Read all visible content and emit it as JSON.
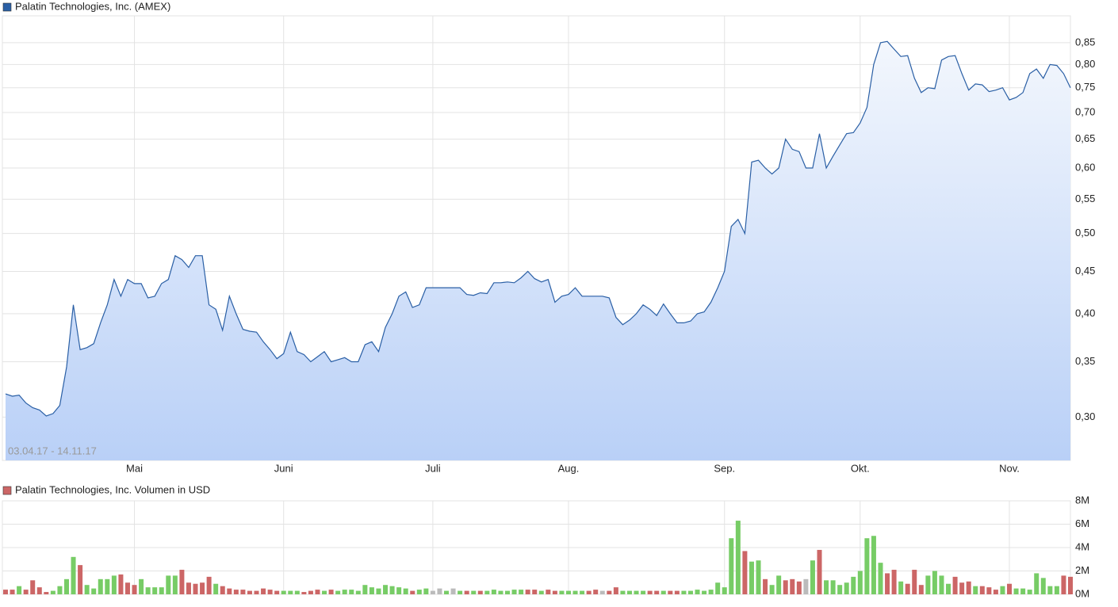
{
  "chart_data": [
    {
      "type": "area",
      "title": "Palatin Technologies, Inc. (AMEX)",
      "subtitle": "03.04.17 - 14.11.17",
      "color": "#2a5fa5",
      "log": true,
      "grid": true,
      "categories": [
        null,
        null,
        null,
        null,
        null,
        null,
        null,
        null,
        null,
        null,
        null,
        null,
        null,
        null,
        null,
        null,
        null,
        null,
        null,
        "Mai",
        null,
        null,
        null,
        null,
        null,
        null,
        null,
        null,
        null,
        null,
        null,
        null,
        null,
        null,
        null,
        null,
        null,
        null,
        null,
        null,
        null,
        "Juni",
        null,
        null,
        null,
        null,
        null,
        null,
        null,
        null,
        null,
        null,
        null,
        null,
        null,
        null,
        null,
        null,
        null,
        null,
        null,
        null,
        null,
        "Juli",
        null,
        null,
        null,
        null,
        null,
        null,
        null,
        null,
        null,
        null,
        null,
        null,
        null,
        null,
        null,
        null,
        null,
        null,
        null,
        "Aug.",
        null,
        null,
        null,
        null,
        null,
        null,
        null,
        null,
        null,
        null,
        null,
        null,
        null,
        null,
        null,
        null,
        null,
        null,
        null,
        null,
        null,
        null,
        "Sep.",
        null,
        null,
        null,
        null,
        null,
        null,
        null,
        null,
        null,
        null,
        null,
        null,
        null,
        null,
        null,
        null,
        null,
        null,
        null,
        "Okt.",
        null,
        null,
        null,
        null,
        null,
        null,
        null,
        null,
        null,
        null,
        null,
        null,
        null,
        null,
        null,
        null,
        null,
        null,
        null,
        null,
        null,
        "Nov.",
        null,
        null,
        null,
        null,
        null,
        null,
        null,
        null,
        null
      ],
      "values": [
        0.32,
        0.318,
        0.319,
        0.312,
        0.308,
        0.306,
        0.301,
        0.303,
        0.31,
        0.345,
        0.41,
        0.362,
        0.364,
        0.368,
        0.39,
        0.41,
        0.44,
        0.42,
        0.44,
        0.435,
        0.435,
        0.418,
        0.42,
        0.435,
        0.44,
        0.47,
        0.465,
        0.455,
        0.47,
        0.47,
        0.41,
        0.405,
        0.382,
        0.42,
        0.4,
        0.383,
        0.381,
        0.38,
        0.37,
        0.362,
        0.353,
        0.358,
        0.38,
        0.36,
        0.357,
        0.35,
        0.355,
        0.36,
        0.35,
        0.352,
        0.354,
        0.35,
        0.35,
        0.367,
        0.37,
        0.36,
        0.385,
        0.4,
        0.42,
        0.425,
        0.407,
        0.41,
        0.43,
        0.43,
        0.43,
        0.43,
        0.43,
        0.43,
        0.422,
        0.421,
        0.424,
        0.423,
        0.436,
        0.436,
        0.437,
        0.436,
        0.442,
        0.45,
        0.441,
        0.437,
        0.44,
        0.413,
        0.42,
        0.422,
        0.43,
        0.42,
        0.42,
        0.42,
        0.42,
        0.418,
        0.396,
        0.388,
        0.393,
        0.4,
        0.41,
        0.405,
        0.398,
        0.411,
        0.4,
        0.39,
        0.39,
        0.392,
        0.4,
        0.402,
        0.413,
        0.43,
        0.45,
        0.51,
        0.52,
        0.5,
        0.61,
        0.613,
        0.6,
        0.59,
        0.6,
        0.65,
        0.632,
        0.628,
        0.6,
        0.6,
        0.66,
        0.6,
        0.62,
        0.64,
        0.66,
        0.662,
        0.68,
        0.71,
        0.8,
        0.85,
        0.853,
        0.835,
        0.818,
        0.82,
        0.77,
        0.74,
        0.75,
        0.748,
        0.81,
        0.818,
        0.82,
        0.78,
        0.745,
        0.758,
        0.756,
        0.742,
        0.745,
        0.75,
        0.725,
        0.73,
        0.74,
        0.78,
        0.79,
        0.77,
        0.8,
        0.798,
        0.78,
        0.75
      ],
      "ylim": [
        0.266,
        0.916
      ],
      "yticks": [
        {
          "value": 0.3,
          "label": "0,30"
        },
        {
          "value": 0.35,
          "label": "0,35"
        },
        {
          "value": 0.4,
          "label": "0,40"
        },
        {
          "value": 0.45,
          "label": "0,45"
        },
        {
          "value": 0.5,
          "label": "0,50"
        },
        {
          "value": 0.55,
          "label": "0,55"
        },
        {
          "value": 0.6,
          "label": "0,60"
        },
        {
          "value": 0.65,
          "label": "0,65"
        },
        {
          "value": 0.7,
          "label": "0,70"
        },
        {
          "value": 0.75,
          "label": "0,75"
        },
        {
          "value": 0.8,
          "label": "0,80"
        },
        {
          "value": 0.85,
          "label": "0,85"
        }
      ]
    },
    {
      "type": "bar",
      "title": "Palatin Technologies, Inc. Volumen in USD",
      "color": "#c66",
      "grid": true,
      "values": [
        400000,
        400000,
        700000,
        400000,
        1200000,
        600000,
        200000,
        300000,
        700000,
        1300000,
        3200000,
        2500000,
        800000,
        500000,
        1300000,
        1300000,
        1600000,
        1700000,
        1000000,
        800000,
        1300000,
        600000,
        600000,
        600000,
        1600000,
        1600000,
        2100000,
        1000000,
        900000,
        1000000,
        1500000,
        900000,
        700000,
        500000,
        400000,
        400000,
        300000,
        300000,
        500000,
        400000,
        300000,
        300000,
        300000,
        300000,
        200000,
        300000,
        400000,
        300000,
        400000,
        300000,
        400000,
        400000,
        300000,
        800000,
        600000,
        500000,
        800000,
        700000,
        600000,
        500000,
        300000,
        400000,
        500000,
        300000,
        500000,
        300000,
        500000,
        300000,
        300000,
        300000,
        300000,
        300000,
        400000,
        300000,
        300000,
        400000,
        400000,
        400000,
        400000,
        300000,
        400000,
        300000,
        300000,
        300000,
        300000,
        300000,
        300000,
        400000,
        300000,
        300000,
        600000,
        300000,
        300000,
        300000,
        300000,
        300000,
        300000,
        300000,
        300000,
        300000,
        300000,
        300000,
        400000,
        300000,
        400000,
        1000000,
        600000,
        4800000,
        6300000,
        3700000,
        2800000,
        2900000,
        1300000,
        800000,
        1600000,
        1200000,
        1300000,
        1100000,
        1300000,
        2900000,
        3800000,
        1200000,
        1200000,
        800000,
        1000000,
        1500000,
        2000000,
        4800000,
        5000000,
        2700000,
        1800000,
        2100000,
        1100000,
        900000,
        2100000,
        800000,
        1600000,
        2000000,
        1600000,
        900000,
        1500000,
        1000000,
        1100000,
        700000,
        700000,
        600000,
        400000,
        700000,
        900000,
        500000,
        500000,
        400000,
        1800000,
        1400000,
        700000,
        700000,
        1600000,
        1500000
      ],
      "colors": [
        "#c66",
        "#c66",
        "#7c6",
        "#c66",
        "#c66",
        "#c66",
        "#c66",
        "#7c6",
        "#7c6",
        "#7c6",
        "#7c6",
        "#c66",
        "#7c6",
        "#7c6",
        "#7c6",
        "#7c6",
        "#7c6",
        "#c66",
        "#c66",
        "#c66",
        "#7c6",
        "#7c6",
        "#7c6",
        "#7c6",
        "#7c6",
        "#7c6",
        "#c66",
        "#c66",
        "#c66",
        "#c66",
        "#c66",
        "#7c6",
        "#c66",
        "#c66",
        "#c66",
        "#c66",
        "#c66",
        "#c66",
        "#c66",
        "#c66",
        "#c66",
        "#7c6",
        "#7c6",
        "#7c6",
        "#c66",
        "#c66",
        "#c66",
        "#7c6",
        "#c66",
        "#7c6",
        "#7c6",
        "#7c6",
        "#7c6",
        "#7c6",
        "#7c6",
        "#7c6",
        "#7c6",
        "#7c6",
        "#7c6",
        "#7c6",
        "#c66",
        "#7c6",
        "#7c6",
        "#bbb",
        "#bbb",
        "#7c6",
        "#bbb",
        "#7c6",
        "#c66",
        "#7c6",
        "#c66",
        "#7c6",
        "#7c6",
        "#7c6",
        "#7c6",
        "#7c6",
        "#7c6",
        "#c66",
        "#c66",
        "#7c6",
        "#c66",
        "#c66",
        "#7c6",
        "#7c6",
        "#7c6",
        "#7c6",
        "#c66",
        "#c66",
        "#bbb",
        "#c66",
        "#c66",
        "#7c6",
        "#7c6",
        "#7c6",
        "#7c6",
        "#c66",
        "#c66",
        "#7c6",
        "#c66",
        "#c66",
        "#7c6",
        "#7c6",
        "#7c6",
        "#7c6",
        "#7c6",
        "#7c6",
        "#7c6",
        "#7c6",
        "#7c6",
        "#c66",
        "#7c6",
        "#7c6",
        "#c66",
        "#7c6",
        "#7c6",
        "#c66",
        "#c66",
        "#c66",
        "#bbb",
        "#7c6",
        "#c66",
        "#7c6",
        "#7c6",
        "#7c6",
        "#7c6",
        "#7c6",
        "#7c6",
        "#7c6",
        "#7c6",
        "#7c6",
        "#c66",
        "#c66",
        "#7c6",
        "#c66",
        "#c66",
        "#c66",
        "#7c6",
        "#7c6",
        "#7c6",
        "#7c6",
        "#c66",
        "#c66",
        "#c66",
        "#7c6",
        "#c66",
        "#c66",
        "#c66",
        "#7c6",
        "#c66",
        "#7c6",
        "#7c6",
        "#7c6",
        "#7c6",
        "#7c6",
        "#7c6",
        "#7c6",
        "#c66",
        "#c66"
      ],
      "ylim": [
        0,
        8000000
      ],
      "yticks": [
        {
          "value": 0,
          "label": "0M"
        },
        {
          "value": 2000000,
          "label": "2M"
        },
        {
          "value": 4000000,
          "label": "4M"
        },
        {
          "value": 6000000,
          "label": "6M"
        },
        {
          "value": 8000000,
          "label": "8M"
        }
      ]
    }
  ]
}
